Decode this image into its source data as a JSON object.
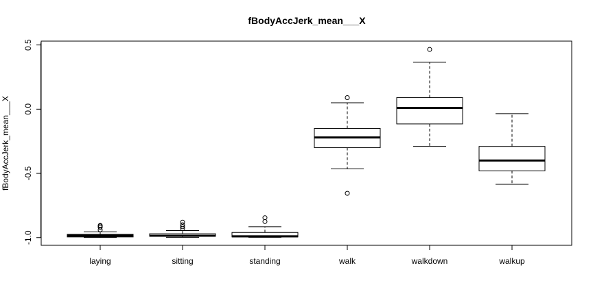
{
  "chart_data": {
    "type": "boxplot",
    "title": "fBodyAccJerk_mean___X",
    "xlabel": "",
    "ylabel": "fBodyAccJerk_mean___X",
    "ylim": [
      -1.06,
      0.53
    ],
    "yticks": [
      -1.0,
      -0.5,
      0.0,
      0.5
    ],
    "ytick_labels": [
      "-1.0",
      "-0.5",
      "0.0",
      "0.5"
    ],
    "grid": false,
    "categories": [
      "laying",
      "sitting",
      "standing",
      "walk",
      "walkdown",
      "walkup"
    ],
    "boxes": [
      {
        "category": "laying",
        "whisker_low": -0.999,
        "q1": -0.995,
        "median": -0.985,
        "q3": -0.975,
        "whisker_high": -0.955,
        "outliers": [
          -0.905,
          -0.91,
          -0.92,
          -0.94
        ]
      },
      {
        "category": "sitting",
        "whisker_low": -0.998,
        "q1": -0.99,
        "median": -0.985,
        "q3": -0.97,
        "whisker_high": -0.945,
        "outliers": [
          -0.88,
          -0.9,
          -0.915,
          -0.93
        ]
      },
      {
        "category": "standing",
        "whisker_low": -0.998,
        "q1": -0.995,
        "median": -0.99,
        "q3": -0.96,
        "whisker_high": -0.915,
        "outliers": [
          -0.845,
          -0.875
        ]
      },
      {
        "category": "walk",
        "whisker_low": -0.465,
        "q1": -0.3,
        "median": -0.22,
        "q3": -0.15,
        "whisker_high": 0.05,
        "outliers": [
          0.09,
          -0.655
        ]
      },
      {
        "category": "walkdown",
        "whisker_low": -0.29,
        "q1": -0.115,
        "median": 0.01,
        "q3": 0.09,
        "whisker_high": 0.365,
        "outliers": [
          0.465
        ]
      },
      {
        "category": "walkup",
        "whisker_low": -0.585,
        "q1": -0.48,
        "median": -0.4,
        "q3": -0.29,
        "whisker_high": -0.035,
        "outliers": []
      }
    ]
  }
}
